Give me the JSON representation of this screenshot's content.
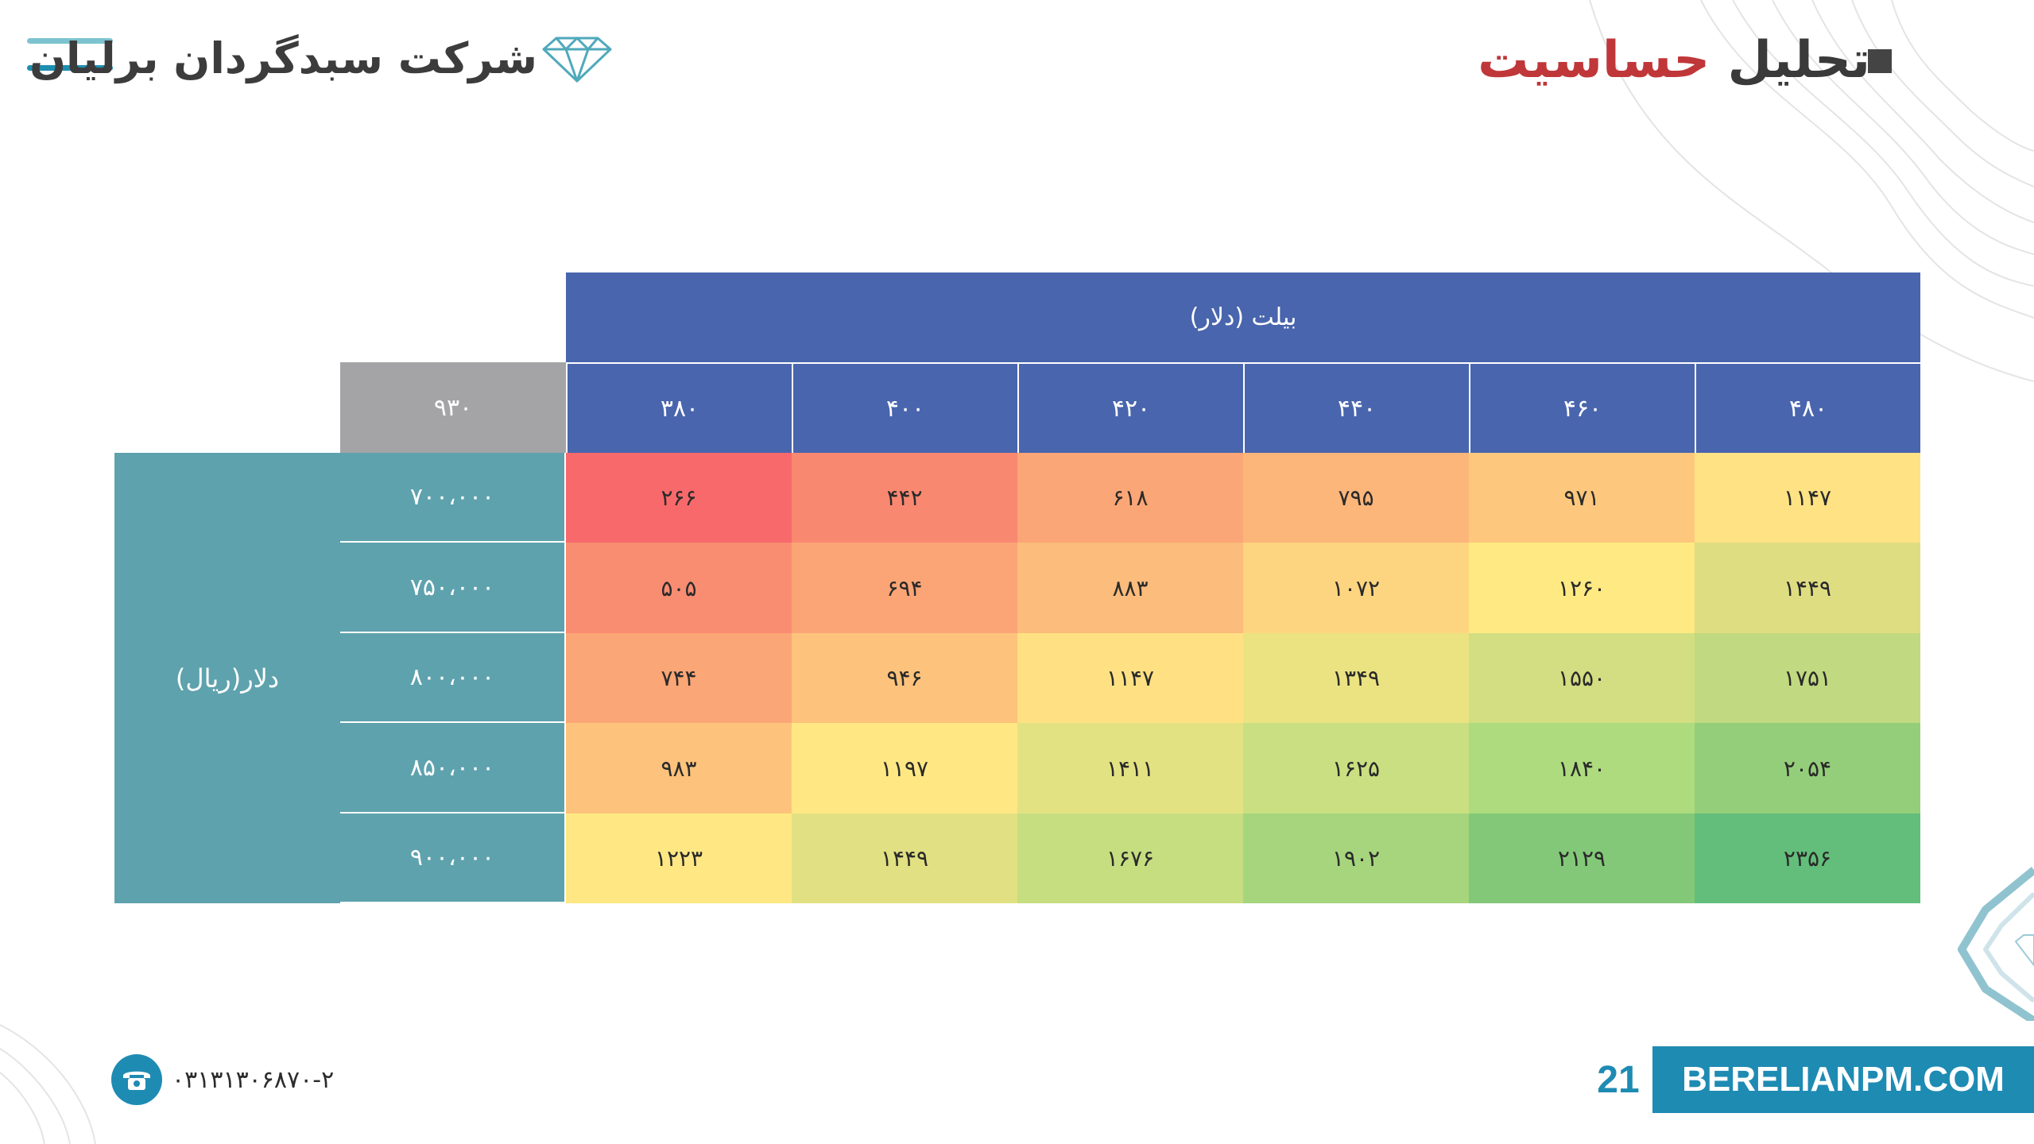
{
  "header": {
    "company_name": "شرکت سبدگردان برلیان",
    "title_part1": "تحلیل",
    "title_part2": "حساسیت"
  },
  "table": {
    "top_header": "بیلت (دلار)",
    "corner_value": "۹۳۰",
    "side_label": "دلار(ریال)",
    "column_headers": [
      "۳۸۰",
      "۴۰۰",
      "۴۲۰",
      "۴۴۰",
      "۴۶۰",
      "۴۸۰"
    ],
    "rows": [
      {
        "label": "۷۰۰،۰۰۰",
        "values": [
          "۲۶۶",
          "۴۴۲",
          "۶۱۸",
          "۷۹۵",
          "۹۷۱",
          "۱۱۴۷"
        ]
      },
      {
        "label": "۷۵۰،۰۰۰",
        "values": [
          "۵۰۵",
          "۶۹۴",
          "۸۸۳",
          "۱۰۷۲",
          "۱۲۶۰",
          "۱۴۴۹"
        ]
      },
      {
        "label": "۸۰۰،۰۰۰",
        "values": [
          "۷۴۴",
          "۹۴۶",
          "۱۱۴۷",
          "۱۳۴۹",
          "۱۵۵۰",
          "۱۷۵۱"
        ]
      },
      {
        "label": "۸۵۰،۰۰۰",
        "values": [
          "۹۸۳",
          "۱۱۹۷",
          "۱۴۱۱",
          "۱۶۲۵",
          "۱۸۴۰",
          "۲۰۵۴"
        ]
      },
      {
        "label": "۹۰۰،۰۰۰",
        "values": [
          "۱۲۲۳",
          "۱۴۴۹",
          "۱۶۷۶",
          "۱۹۰۲",
          "۲۱۲۹",
          "۲۳۵۶"
        ]
      }
    ],
    "cell_colors": [
      [
        "#f8696b",
        "#f98871",
        "#fba676",
        "#fcb67a",
        "#fdc87d",
        "#ffe283"
      ],
      [
        "#f98d72",
        "#fba576",
        "#fcbc7b",
        "#fdd580",
        "#fee983",
        "#dfdd82"
      ],
      [
        "#fba676",
        "#fdc37c",
        "#ffe183",
        "#ebe382",
        "#d2de81",
        "#c1d980"
      ],
      [
        "#fdc37c",
        "#ffe884",
        "#e3e283",
        "#c9df81",
        "#addb7e",
        "#94ce7b"
      ],
      [
        "#ffe884",
        "#e1e082",
        "#c6de80",
        "#a6d57d",
        "#83c878",
        "#63be7b"
      ]
    ]
  },
  "footer": {
    "website": "BERELIANPM.COM",
    "page_number": "21",
    "phone": "۰۳۱۳۱۳۰۶۸۷۰-۲"
  },
  "colors": {
    "header_blue": "#4965ad",
    "teal_label": "#5ea2ad",
    "gray_corner": "#a4a4a6",
    "accent_red": "#c0373a",
    "brand_blue": "#1e8bb3"
  },
  "icons": [
    "hamburger-menu-icon",
    "diamond-logo-icon",
    "phone-icon",
    "corner-diamond-logo-icon"
  ]
}
